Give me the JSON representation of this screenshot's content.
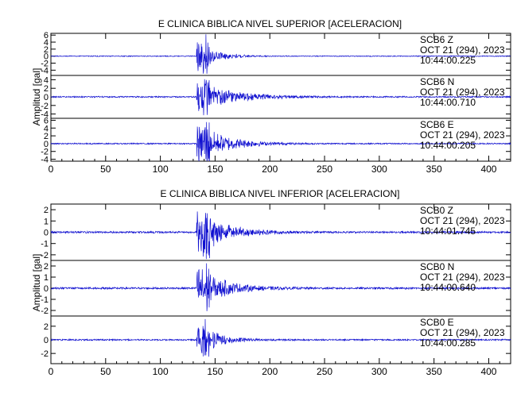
{
  "chart_data": [
    {
      "type": "line",
      "title": "E CLINICA BIBLICA NIVEL SUPERIOR [ACELERACION]",
      "ylabel": "Amplitud [gal]",
      "xlim": [
        0,
        420
      ],
      "xticks": [
        0,
        50,
        100,
        150,
        200,
        250,
        300,
        350,
        400
      ],
      "series": [
        {
          "name": "SCB6   Z",
          "date": "OCT 21 (294), 2023",
          "time": "10:44:00.225",
          "ylim": [
            -5.5,
            6.5
          ],
          "yticks": [
            6,
            4,
            2,
            0,
            -2,
            -4
          ],
          "tick_labels": [
            "6",
            "4",
            "2",
            "0",
            "-2",
            "-4"
          ],
          "onset": 133,
          "peak": 6,
          "decay": 14,
          "noise": 0.12
        },
        {
          "name": "SCB6   N",
          "date": "OCT 21 (294), 2023",
          "time": "10:44:00.710",
          "ylim": [
            -5,
            5
          ],
          "yticks": [
            4,
            2,
            0,
            -2,
            -4
          ],
          "tick_labels": [
            "4",
            "2",
            "0",
            "-2",
            "-4"
          ],
          "onset": 133,
          "peak": 4.2,
          "decay": 30,
          "noise": 0.15
        },
        {
          "name": "SCB6   E",
          "date": "OCT 21 (294), 2023",
          "time": "10:44:00.205",
          "ylim": [
            -4.5,
            6.5
          ],
          "yticks": [
            6,
            4,
            2,
            0,
            -2,
            -4
          ],
          "tick_labels": [
            "6",
            "4",
            "2",
            "0",
            "-2",
            "-4"
          ],
          "onset": 133,
          "peak": 6,
          "decay": 24,
          "noise": 0.15
        }
      ]
    },
    {
      "type": "line",
      "title": "E CLINICA BIBLICA NIVEL INFERIOR [ACELERACION]",
      "ylabel": "Amplitud [gal]",
      "xlim": [
        0,
        420
      ],
      "xticks": [
        0,
        50,
        100,
        150,
        200,
        250,
        300,
        350,
        400
      ],
      "series": [
        {
          "name": "SCB0   Z",
          "date": "OCT 21 (294), 2023",
          "time": "10:44:01.745",
          "ylim": [
            -2.5,
            2.5
          ],
          "yticks": [
            2,
            1,
            0,
            -1,
            -2
          ],
          "tick_labels": [
            "2",
            "1",
            "0",
            "-1",
            "-2"
          ],
          "onset": 133,
          "peak": 2.5,
          "decay": 22,
          "noise": 0.08
        },
        {
          "name": "SCB0   N",
          "date": "OCT 21 (294), 2023",
          "time": "10:44:00.640",
          "ylim": [
            -2.5,
            2.5
          ],
          "yticks": [
            2,
            1,
            0,
            -1,
            -2
          ],
          "tick_labels": [
            "2",
            "1",
            "0",
            "-1",
            "-2"
          ],
          "onset": 133,
          "peak": 2.3,
          "decay": 22,
          "noise": 0.08
        },
        {
          "name": "SCB0   E",
          "date": "OCT 21 (294), 2023",
          "time": "10:44:00.285",
          "ylim": [
            -3.5,
            3.5
          ],
          "yticks": [
            2,
            0,
            -2
          ],
          "tick_labels": [
            "2",
            "0",
            "-2"
          ],
          "onset": 133,
          "peak": 3.2,
          "decay": 16,
          "noise": 0.1
        }
      ]
    }
  ],
  "colors": {
    "trace": "#1010d0",
    "axes": "#000000"
  }
}
